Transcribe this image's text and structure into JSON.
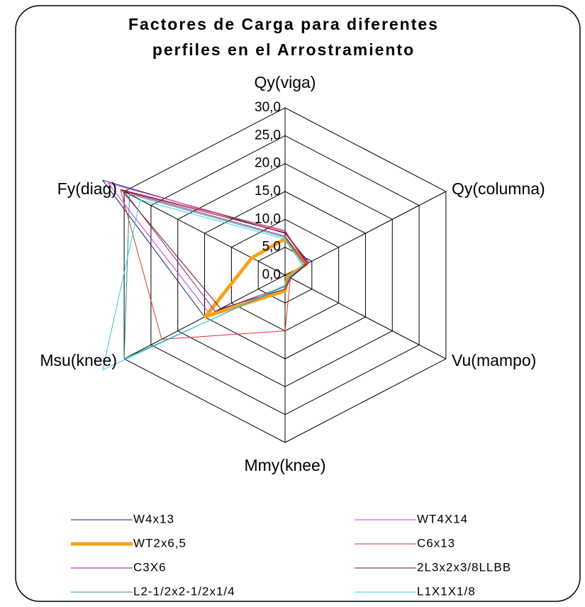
{
  "chart_data": {
    "type": "radar",
    "title": [
      "Factores de Carga para diferentes",
      "perfiles en el Arrostramiento"
    ],
    "categories": [
      "Qy(viga)",
      "Qy(columna)",
      "Vu(mampo)",
      "Mmy(knee)",
      "Msu(knee)",
      "Fy(diag)"
    ],
    "ylim": [
      0,
      30
    ],
    "yticks": [
      {
        "value": 0,
        "label": "0,0"
      },
      {
        "value": 5,
        "label": "5,0"
      },
      {
        "value": 10,
        "label": "10,0"
      },
      {
        "value": 15,
        "label": "15,0"
      },
      {
        "value": 20,
        "label": "20,0"
      },
      {
        "value": 25,
        "label": "25,0"
      },
      {
        "value": 30,
        "label": "30,0"
      }
    ],
    "grid": true,
    "legend": "bottom",
    "series": [
      {
        "name": "W4x13",
        "color": "#1a1a6e",
        "values": [
          7.5,
          4.5,
          1,
          3,
          15,
          34
        ]
      },
      {
        "name": "WT4X14",
        "color": "#d633d6",
        "values": [
          7.8,
          4.3,
          1,
          3,
          14,
          33
        ]
      },
      {
        "name": "WT2x6,5",
        "color": "#f7a21b",
        "values": [
          6.5,
          4,
          0.5,
          2.8,
          14.8,
          6.2
        ]
      },
      {
        "name": "C6x13",
        "color": "#e03030",
        "values": [
          8,
          4,
          1,
          10,
          23,
          30.7
        ]
      },
      {
        "name": "C3X6",
        "color": "#8b1a8b",
        "values": [
          7,
          3.8,
          0.8,
          2,
          13,
          30
        ]
      },
      {
        "name": "2L3x2x3/8LLBB",
        "color": "#6b0f1a",
        "values": [
          7.6,
          4.2,
          1,
          2.5,
          12,
          30.5
        ]
      },
      {
        "name": "L2-1/2x2-1/2x1/4",
        "color": "#2a8f8f",
        "values": [
          6.8,
          3.5,
          0.8,
          2,
          30,
          29
        ]
      },
      {
        "name": "L1X1X1/8",
        "color": "#33cce0",
        "values": [
          6.5,
          3.3,
          0.7,
          1.8,
          34,
          27
        ]
      }
    ]
  }
}
